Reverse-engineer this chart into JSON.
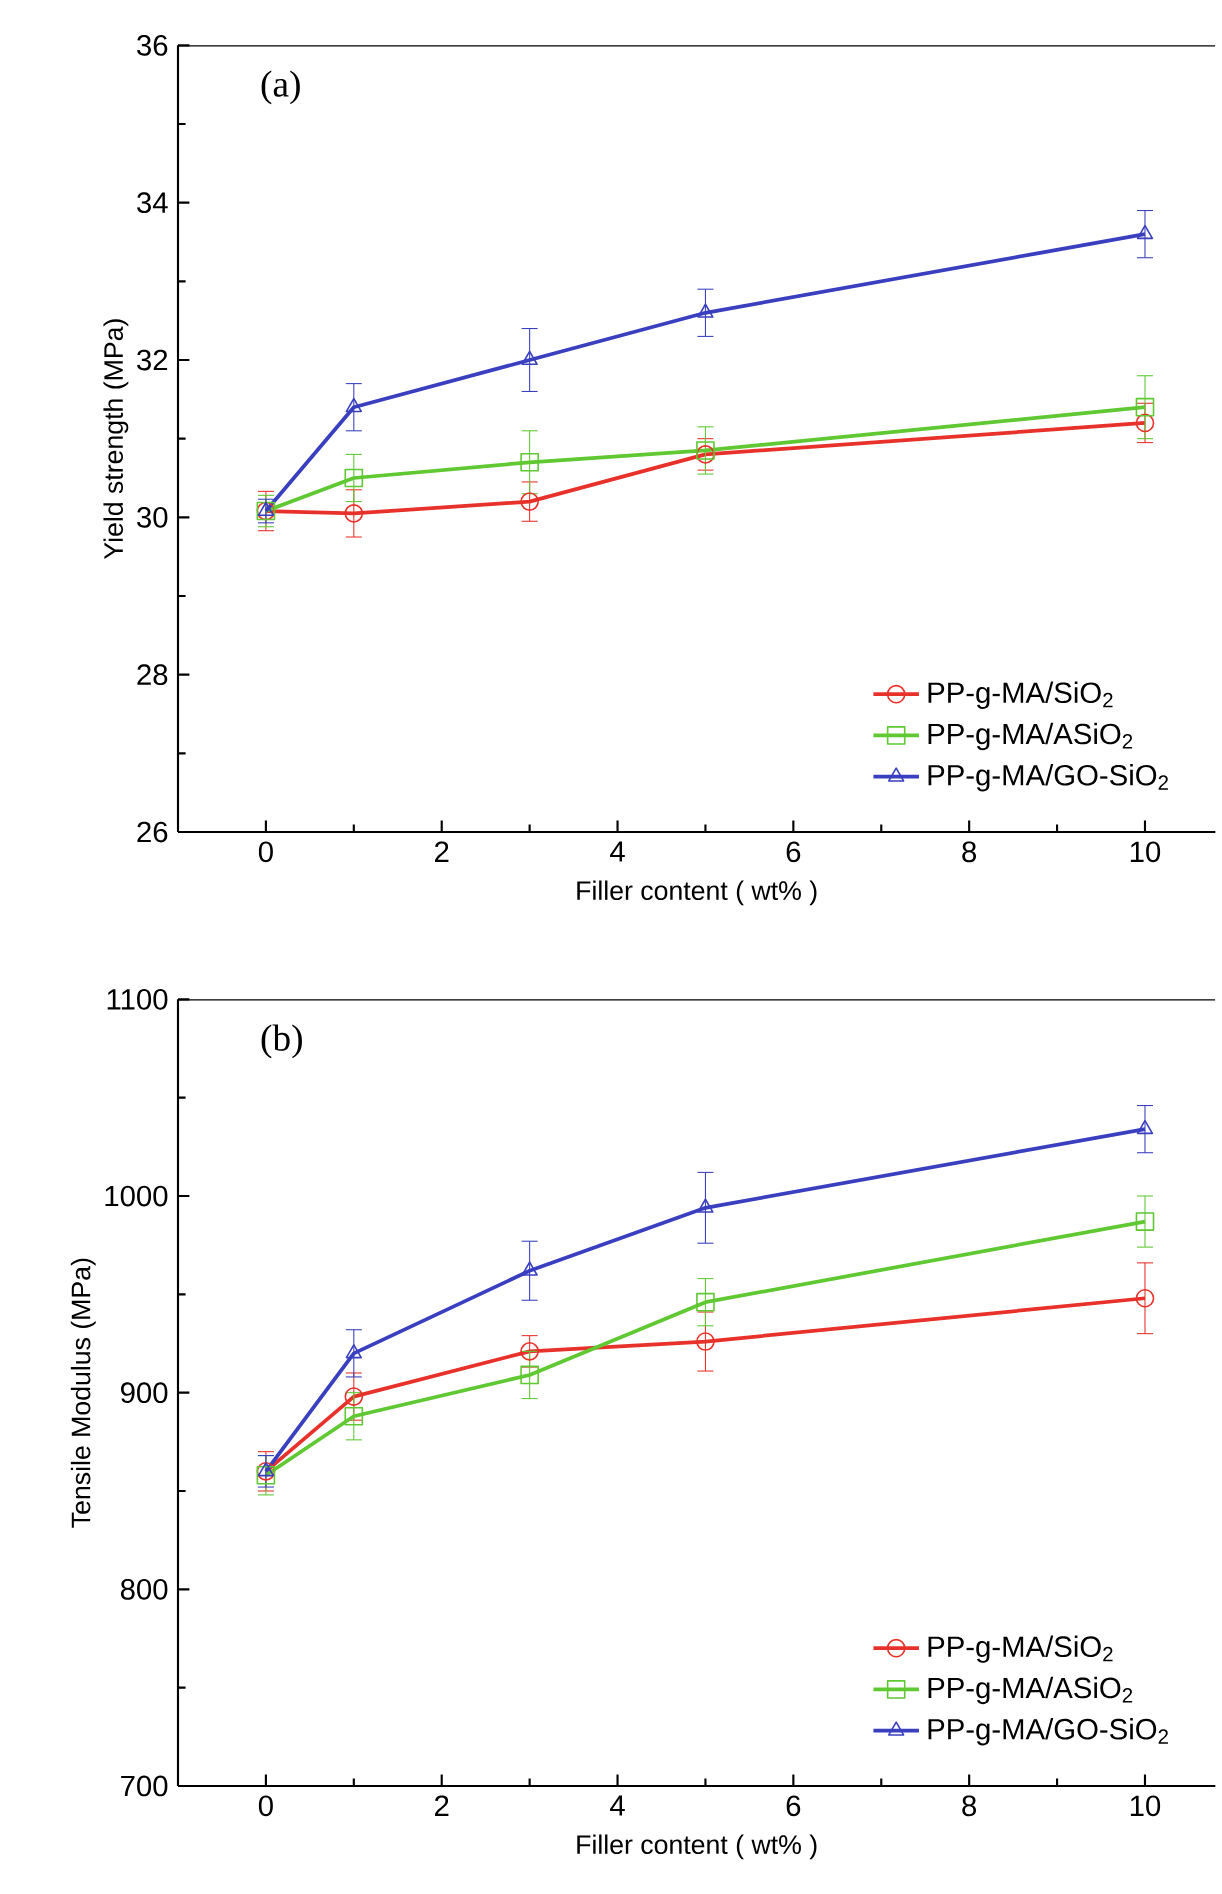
{
  "chart_data": [
    {
      "type": "line",
      "xlabel": "Filler content ( wt% )",
      "ylabel": "Yield strength (MPa)",
      "annotations": [
        "(a)"
      ],
      "x": [
        0,
        1,
        3,
        5,
        10
      ],
      "xlim": [
        -1,
        10.8
      ],
      "xticks": [
        0,
        2,
        4,
        6,
        8,
        10
      ],
      "ylim": [
        26,
        36
      ],
      "yticks": [
        26,
        28,
        30,
        32,
        34,
        36
      ],
      "legend": "bottom right",
      "line_style": "solid",
      "series": [
        {
          "name": "PP-g-MA/SiO$_{2}$",
          "color": "#e8312a",
          "marker": "circle",
          "values": [
            30.08,
            30.05,
            30.2,
            30.8,
            31.2
          ],
          "errors": [
            0.25,
            0.3,
            0.25,
            0.2,
            0.25
          ]
        },
        {
          "name": "PP-g-MA/ASiO$_{2}$",
          "color": "#5fc832",
          "marker": "square",
          "values": [
            30.08,
            30.5,
            30.7,
            30.85,
            31.4
          ],
          "errors": [
            0.2,
            0.3,
            0.4,
            0.3,
            0.4
          ]
        },
        {
          "name": "PP-g-MA/GO-SiO$_{2}$",
          "color": "#3a3fc0",
          "marker": "triangle",
          "values": [
            30.08,
            31.4,
            32.0,
            32.6,
            33.6
          ],
          "errors": [
            0.15,
            0.3,
            0.4,
            0.3,
            0.3
          ]
        }
      ]
    },
    {
      "type": "line",
      "xlabel": "Filler content ( wt% )",
      "ylabel": "Tensile Modulus (MPa)",
      "annotations": [
        "(b)"
      ],
      "x": [
        0,
        1,
        3,
        5,
        10
      ],
      "xlim": [
        -1,
        10.8
      ],
      "xticks": [
        0,
        2,
        4,
        6,
        8,
        10
      ],
      "ylim": [
        700,
        1100
      ],
      "yticks": [
        700,
        800,
        900,
        1000,
        1100
      ],
      "legend": "bottom right",
      "line_style": "solid",
      "series": [
        {
          "name": "PP-g-MA/SiO$_{2}$",
          "color": "#e8312a",
          "marker": "circle",
          "values": [
            860,
            898,
            921,
            926,
            948
          ],
          "errors": [
            10,
            12,
            8,
            15,
            18
          ]
        },
        {
          "name": "PP-g-MA/ASiO$_{2}$",
          "color": "#5fc832",
          "marker": "square",
          "values": [
            858,
            888,
            909,
            946,
            987
          ],
          "errors": [
            10,
            12,
            12,
            12,
            13
          ]
        },
        {
          "name": "PP-g-MA/GO-SiO$_{2}$",
          "color": "#3a3fc0",
          "marker": "triangle",
          "values": [
            860,
            920,
            962,
            994,
            1034
          ],
          "errors": [
            8,
            12,
            15,
            18,
            12
          ]
        }
      ]
    }
  ]
}
